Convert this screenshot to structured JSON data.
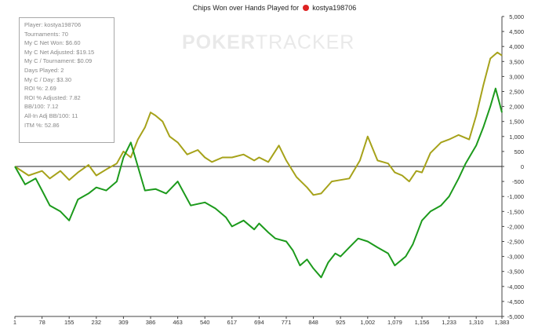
{
  "chart_data": {
    "type": "line",
    "title": "Chips Won over Hands Played for",
    "player_name": "kostya198706",
    "xlabel": "",
    "ylabel": "",
    "xlim": [
      1,
      1383
    ],
    "ylim": [
      -5000,
      5000
    ],
    "x_ticks": [
      "1",
      "78",
      "155",
      "232",
      "309",
      "386",
      "463",
      "540",
      "617",
      "694",
      "771",
      "848",
      "925",
      "1,002",
      "1,079",
      "1,156",
      "1,233",
      "1,310",
      "1,383"
    ],
    "y_ticks": [
      "5,000",
      "4,500",
      "4,000",
      "3,500",
      "3,000",
      "2,500",
      "2,000",
      "1,500",
      "1,000",
      "500",
      "0",
      "-500",
      "-1,000",
      "-1,500",
      "-2,000",
      "-2,500",
      "-3,000",
      "-3,500",
      "-4,000",
      "-4,500",
      "-5,000"
    ],
    "grid": false,
    "series": [
      {
        "color": "#a6a21a",
        "x": [
          1,
          40,
          78,
          100,
          130,
          155,
          180,
          210,
          232,
          260,
          290,
          309,
          330,
          350,
          370,
          386,
          400,
          420,
          440,
          463,
          490,
          520,
          540,
          560,
          590,
          617,
          650,
          680,
          694,
          720,
          750,
          771,
          800,
          830,
          848,
          870,
          900,
          925,
          950,
          980,
          1002,
          1030,
          1060,
          1079,
          1100,
          1120,
          1140,
          1156,
          1180,
          1210,
          1233,
          1260,
          1290,
          1310,
          1330,
          1350,
          1370,
          1383
        ],
        "values": [
          0,
          -300,
          -150,
          -400,
          -150,
          -450,
          -200,
          50,
          -300,
          -100,
          100,
          500,
          300,
          900,
          1300,
          1800,
          1700,
          1500,
          1000,
          800,
          400,
          550,
          300,
          150,
          300,
          300,
          400,
          200,
          300,
          150,
          700,
          200,
          -350,
          -700,
          -950,
          -900,
          -500,
          -450,
          -400,
          200,
          1000,
          200,
          100,
          -200,
          -300,
          -500,
          -150,
          -200,
          450,
          800,
          900,
          1050,
          900,
          1700,
          2700,
          3600,
          3800,
          3700
        ]
      },
      {
        "color": "#1c9a1c",
        "x": [
          1,
          30,
          60,
          78,
          100,
          130,
          155,
          180,
          210,
          232,
          260,
          290,
          309,
          330,
          350,
          370,
          400,
          430,
          463,
          500,
          540,
          570,
          600,
          617,
          650,
          680,
          694,
          720,
          740,
          771,
          790,
          810,
          830,
          848,
          870,
          890,
          910,
          925,
          950,
          975,
          1002,
          1030,
          1060,
          1079,
          1110,
          1130,
          1156,
          1180,
          1210,
          1233,
          1260,
          1280,
          1300,
          1310,
          1330,
          1350,
          1365,
          1383
        ],
        "values": [
          0,
          -600,
          -400,
          -800,
          -1300,
          -1500,
          -1800,
          -1100,
          -900,
          -700,
          -800,
          -500,
          300,
          800,
          0,
          -800,
          -750,
          -900,
          -500,
          -1300,
          -1200,
          -1400,
          -1700,
          -2000,
          -1800,
          -2100,
          -1900,
          -2200,
          -2400,
          -2500,
          -2800,
          -3300,
          -3100,
          -3400,
          -3700,
          -3200,
          -2900,
          -3000,
          -2700,
          -2400,
          -2500,
          -2700,
          -2900,
          -3300,
          -3000,
          -2600,
          -1800,
          -1500,
          -1300,
          -1000,
          -400,
          100,
          500,
          700,
          1300,
          2000,
          2600,
          1800
        ]
      }
    ],
    "stats": [
      "Player: kostya198706",
      "Tournaments: 70",
      "My C Net Won: $6.60",
      "My C Net Adjusted: $19.15",
      "My C / Tournament: $0.09",
      "Days Played: 2",
      "My C / Day: $3.30",
      "ROI %: 2.69",
      "ROI % Adjusted: 7.82",
      "BB/100: 7.12",
      "All-In Adj BB/100: 11",
      "ITM %: 52.86"
    ],
    "watermark": [
      "POKER",
      "TRACKER"
    ]
  }
}
